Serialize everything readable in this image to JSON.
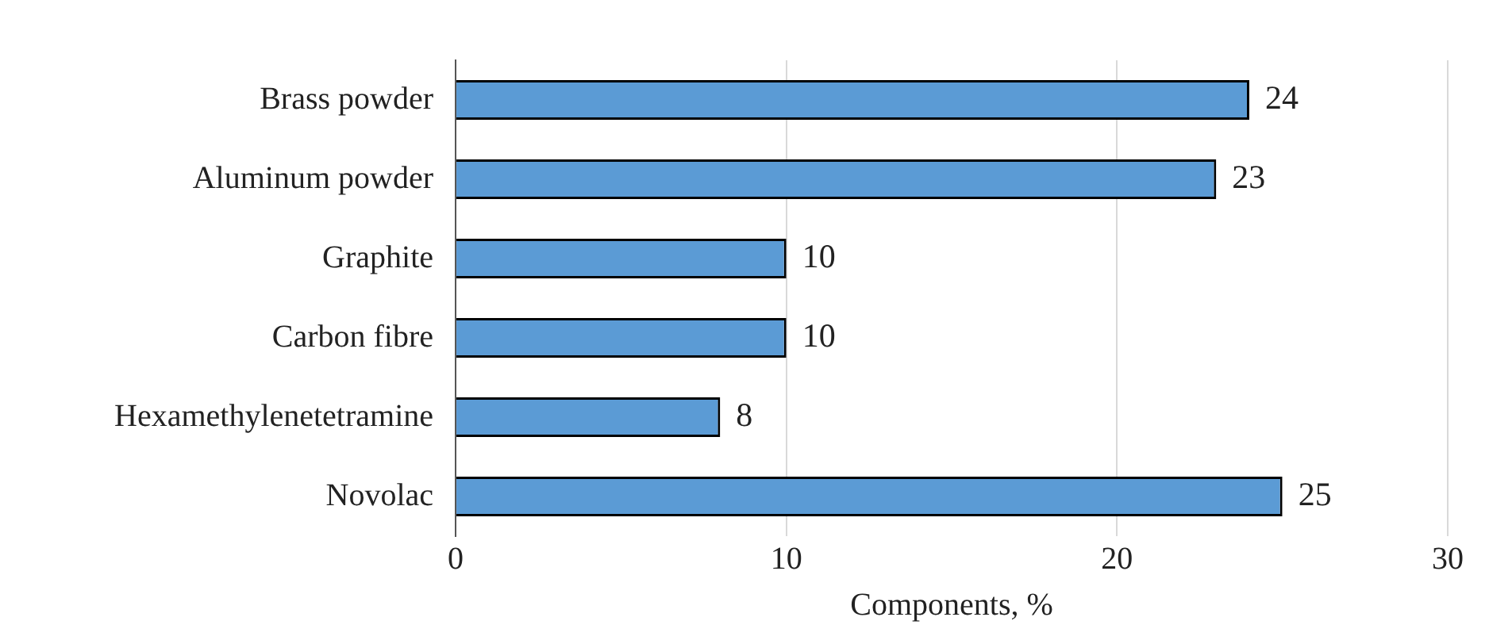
{
  "chart_data": {
    "type": "bar",
    "orientation": "horizontal",
    "categories": [
      "Brass powder",
      "Aluminum powder",
      "Graphite",
      "Carbon fibre",
      "Hexamethylenetetramine",
      "Novolac"
    ],
    "values": [
      24,
      23,
      10,
      10,
      8,
      25
    ],
    "color": "#5b9bd5",
    "xlabel": "Components, %",
    "xlim": [
      0,
      30
    ],
    "xticks": [
      0,
      10,
      20,
      30
    ],
    "grid": "x",
    "data_labels": true,
    "legend": false
  }
}
